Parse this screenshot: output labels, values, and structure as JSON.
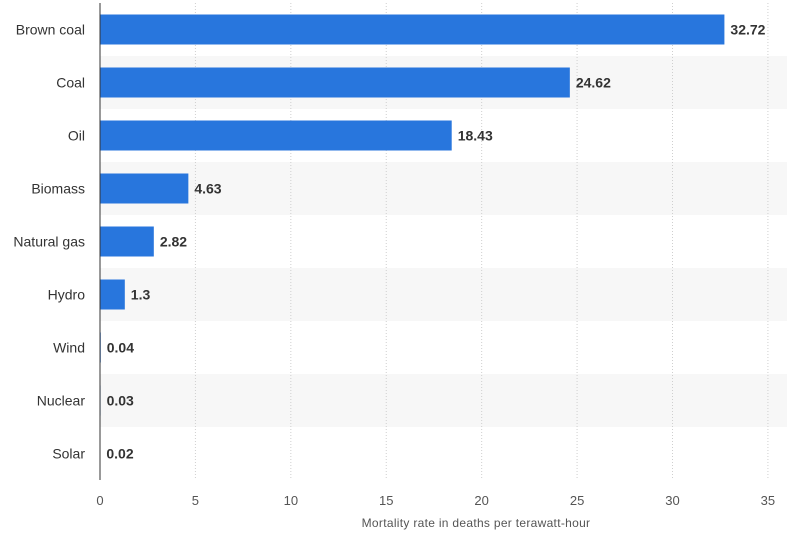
{
  "chart_data": {
    "type": "bar",
    "orientation": "horizontal",
    "categories": [
      "Brown coal",
      "Coal",
      "Oil",
      "Biomass",
      "Natural gas",
      "Hydro",
      "Wind",
      "Nuclear",
      "Solar"
    ],
    "values": [
      32.72,
      24.62,
      18.43,
      4.63,
      2.82,
      1.3,
      0.04,
      0.03,
      0.02
    ],
    "value_labels": [
      "32.72",
      "24.62",
      "18.43",
      "4.63",
      "2.82",
      "1.3",
      "0.04",
      "0.03",
      "0.02"
    ],
    "xlabel": "Mortality rate in deaths per terawatt-hour",
    "xlim": [
      0,
      36
    ],
    "xticks": [
      0,
      5,
      10,
      15,
      20,
      25,
      30,
      35
    ],
    "xtick_labels": [
      "0",
      "5",
      "10",
      "15",
      "20",
      "25",
      "30",
      "35"
    ],
    "grid": "vertical dotted",
    "bar_color": "#2876dd",
    "band_color": "#f7f7f7"
  }
}
